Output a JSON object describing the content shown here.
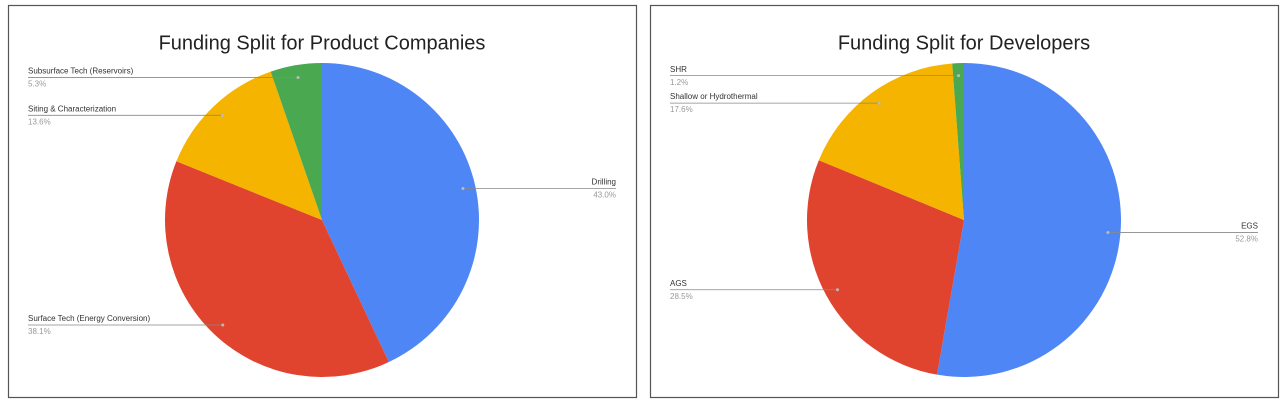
{
  "chart_data": [
    {
      "type": "pie",
      "title": "Funding Split for Product Companies",
      "categories": [
        "Drilling",
        "Surface Tech (Energy Conversion)",
        "Siting & Characterization",
        "Subsurface Tech (Reservoirs)"
      ],
      "values": [
        43.0,
        38.1,
        13.6,
        5.3
      ],
      "value_labels": [
        "43.0%",
        "38.1%",
        "13.6%",
        "5.3%"
      ],
      "colors": [
        "#4f86f6",
        "#e0442f",
        "#f4b400",
        "#4aa851"
      ]
    },
    {
      "type": "pie",
      "title": "Funding Split for Developers",
      "categories": [
        "EGS",
        "AGS",
        "Shallow or Hydrothermal",
        "SHR"
      ],
      "values": [
        52.8,
        28.5,
        17.6,
        1.2
      ],
      "value_labels": [
        "52.8%",
        "28.5%",
        "17.6%",
        "1.2%"
      ],
      "colors": [
        "#4f86f6",
        "#e0442f",
        "#f4b400",
        "#4aa851"
      ]
    }
  ]
}
